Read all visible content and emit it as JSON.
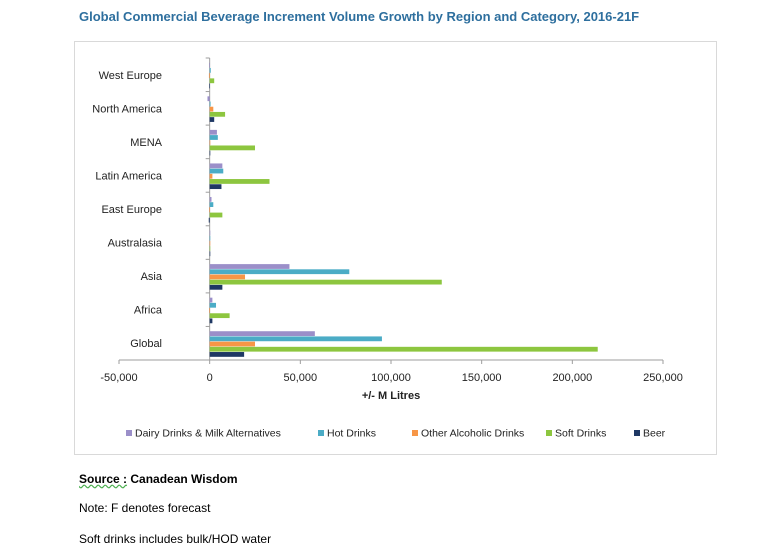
{
  "title": "Global Commercial Beverage Increment Volume Growth by Region and Category, 2016-21F",
  "source": {
    "label": "Source :",
    "value": "Canadean Wisdom"
  },
  "notes": [
    "Note: F denotes forecast",
    "Soft drinks includes bulk/HOD water"
  ],
  "colors": {
    "dairy": "#9b8fc9",
    "hot": "#4bacc6",
    "alcohol": "#f79646",
    "soft": "#8dc63f",
    "beer": "#1f3864"
  },
  "chart_data": {
    "type": "bar",
    "orientation": "horizontal",
    "categories": [
      "West Europe",
      "North America",
      "MENA",
      "Latin America",
      "East Europe",
      "Australasia",
      "Asia",
      "Africa",
      "Global"
    ],
    "series": [
      {
        "name": "Dairy Drinks & Milk Alternatives",
        "values": [
          -300,
          -1200,
          4000,
          7000,
          1000,
          0,
          44000,
          1500,
          58000
        ]
      },
      {
        "name": "Hot Drinks",
        "values": [
          600,
          500,
          4500,
          7500,
          2000,
          300,
          77000,
          3500,
          95000
        ]
      },
      {
        "name": "Other Alcoholic Drinks",
        "values": [
          -400,
          2000,
          300,
          1500,
          -300,
          0,
          19500,
          -300,
          25000
        ]
      },
      {
        "name": "Soft Drinks",
        "values": [
          2500,
          8500,
          25000,
          33000,
          7000,
          200,
          128000,
          11000,
          214000
        ]
      },
      {
        "name": "Beer",
        "values": [
          -200,
          2500,
          300,
          6500,
          -500,
          0,
          7000,
          1500,
          19000
        ]
      }
    ],
    "xlabel": "+/- M Litres",
    "xticks": [
      "-50,000",
      "0",
      "50,000",
      "100,000",
      "150,000",
      "200,000",
      "250,000"
    ],
    "xlim": [
      -50000,
      250000
    ],
    "grid": false,
    "legend": "bottom"
  }
}
